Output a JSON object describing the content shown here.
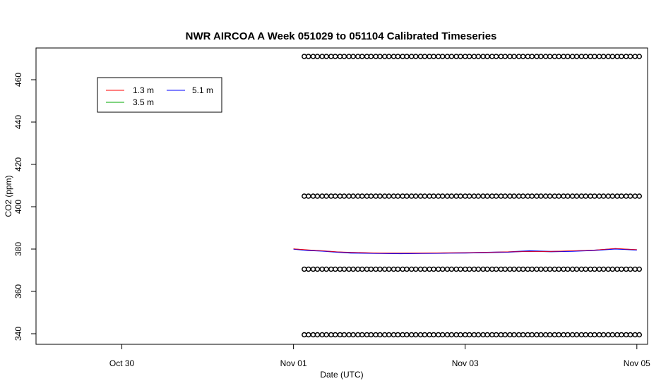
{
  "chart_data": {
    "type": "line",
    "title": "NWR AIRCOA A  Week 051029 to 051104  Calibrated Timeseries",
    "xlabel": "Date (UTC)",
    "ylabel": "CO2 (ppm)",
    "x_unit": "days, 2005 (UTC)",
    "xlim": [
      "2005-10-29 00:00",
      "2005-11-05 03:00"
    ],
    "ylim": [
      335,
      475
    ],
    "x_ticks": [
      {
        "label": "Oct 30",
        "date": "2005-10-30"
      },
      {
        "label": "Nov 01",
        "date": "2005-11-01"
      },
      {
        "label": "Nov 03",
        "date": "2005-11-03"
      },
      {
        "label": "Nov 05",
        "date": "2005-11-05"
      }
    ],
    "y_ticks": [
      340,
      360,
      380,
      400,
      420,
      440,
      460
    ],
    "grid": false,
    "legend": {
      "position": "top-left",
      "entries": [
        {
          "label": "1.3 m",
          "color": "#ff0000"
        },
        {
          "label": "3.5 m",
          "color": "#00aa00"
        },
        {
          "label": "5.1 m",
          "color": "#0000ff"
        }
      ]
    },
    "series": [
      {
        "name": "5.1 m",
        "color": "#0000ff",
        "points": [
          [
            "2005-11-01 00:00",
            380.0
          ],
          [
            "2005-11-01 04:00",
            379.4
          ],
          [
            "2005-11-01 08:00",
            379.1
          ],
          [
            "2005-11-01 12:00",
            378.6
          ],
          [
            "2005-11-01 16:00",
            378.2
          ],
          [
            "2005-11-02 00:00",
            378.0
          ],
          [
            "2005-11-02 06:00",
            377.9
          ],
          [
            "2005-11-02 12:00",
            378.0
          ],
          [
            "2005-11-02 18:00",
            378.1
          ],
          [
            "2005-11-03 00:00",
            378.2
          ],
          [
            "2005-11-03 06:00",
            378.4
          ],
          [
            "2005-11-03 12:00",
            378.6
          ],
          [
            "2005-11-03 18:00",
            379.1
          ],
          [
            "2005-11-04 00:00",
            378.8
          ],
          [
            "2005-11-04 06:00",
            379.0
          ],
          [
            "2005-11-04 12:00",
            379.4
          ],
          [
            "2005-11-04 18:00",
            380.1
          ],
          [
            "2005-11-05 00:00",
            379.6
          ]
        ]
      },
      {
        "name": "1.3 m",
        "color": "#ff0000",
        "points": [
          [
            "2005-11-01 00:00",
            380.1
          ],
          [
            "2005-11-01 12:00",
            378.7
          ],
          [
            "2005-11-02 00:00",
            378.1
          ],
          [
            "2005-11-02 12:00",
            378.1
          ],
          [
            "2005-11-03 00:00",
            378.3
          ],
          [
            "2005-11-03 12:00",
            378.7
          ],
          [
            "2005-11-04 00:00",
            378.9
          ],
          [
            "2005-11-04 12:00",
            379.5
          ],
          [
            "2005-11-04 18:00",
            380.3
          ],
          [
            "2005-11-05 00:00",
            379.7
          ]
        ]
      }
    ],
    "calibration_levels": [
      471,
      405,
      370.5,
      339.5
    ],
    "calibration_span": [
      "2005-11-01 03:00",
      "2005-11-05 00:00"
    ]
  }
}
